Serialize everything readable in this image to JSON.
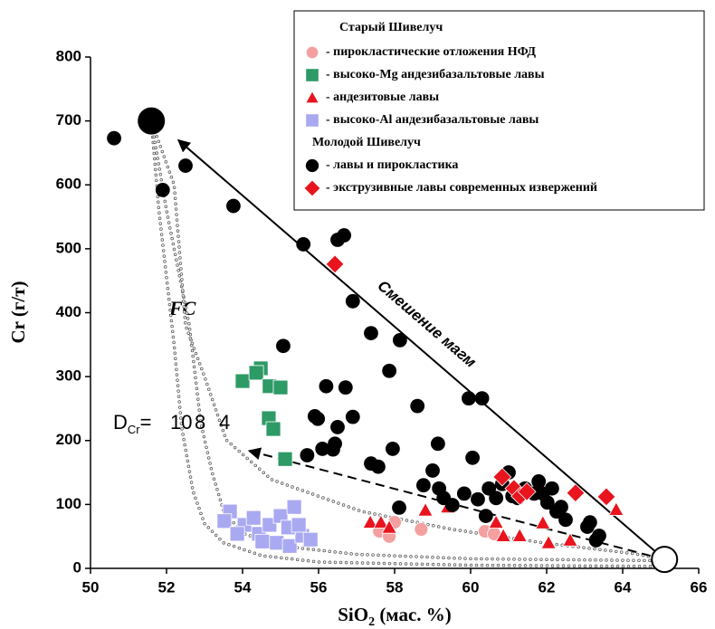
{
  "chart_data": {
    "type": "scatter",
    "x_label": {
      "main": "SiO",
      "sub": "2",
      "rest": " (мас. %)"
    },
    "y_label": "Cr (г/т)",
    "xlim": [
      50,
      66
    ],
    "xticks": [
      50,
      52,
      54,
      56,
      58,
      60,
      62,
      64,
      66
    ],
    "ylim": [
      0,
      800
    ],
    "yticks": [
      0,
      100,
      200,
      300,
      400,
      500,
      600,
      700,
      800
    ],
    "legend_groups": [
      "Старый Шивелуч",
      "Молодой Шивелуч"
    ],
    "series": [
      {
        "name": "- пирокластические отложения НФД",
        "color": "#f4a0a0",
        "marker": "circle",
        "group": 0,
        "x": [
          57.6,
          57.86,
          58,
          58.7,
          60.38,
          60.62
        ],
        "y": [
          58,
          50,
          72,
          61,
          58,
          54
        ]
      },
      {
        "name": "- высоко-Mg андезибазальтовые лавы",
        "color": "#2e9a66",
        "marker": "square",
        "group": 0,
        "x": [
          54,
          54.48,
          54.36,
          54.71,
          55,
          54.69,
          54.81,
          55.12
        ],
        "y": [
          293,
          313,
          306,
          285,
          283,
          235,
          218,
          171
        ]
      },
      {
        "name": "- андезитовые лавы",
        "color": "#e8141e",
        "marker": "triangle",
        "group": 0,
        "x": [
          57.36,
          57.64,
          57.86,
          58.81,
          59.4,
          60.67,
          60.86,
          61.29,
          62.05,
          62.62,
          63.83,
          61.9
        ],
        "y": [
          72,
          72,
          64,
          91,
          96,
          72,
          51,
          51,
          40,
          44,
          92,
          71
        ]
      },
      {
        "name": "- высоко-Al андезибазальтовые лавы",
        "color": "#a9a9f2",
        "marker": "square",
        "group": 0,
        "x": [
          53.67,
          53.52,
          54.05,
          53.86,
          54.43,
          54.71,
          55,
          55.36,
          54.52,
          54.9,
          55.24,
          55.57,
          55.79,
          54.29,
          55.2,
          55.48
        ],
        "y": [
          89,
          74,
          68,
          54,
          54,
          68,
          82,
          96,
          42,
          40,
          35,
          51,
          45,
          79,
          64,
          68
        ]
      },
      {
        "name": "- лавы и пирокластика",
        "color": "#000000",
        "marker": "circle",
        "group": 1,
        "x": [
          50.62,
          51.9,
          52.5,
          53.76,
          55.6,
          56.5,
          56.67,
          56.9,
          55.07,
          57.38,
          58.14,
          57.86,
          56.2,
          56.71,
          55.9,
          55.98,
          56.9,
          56.5,
          56.43,
          56.38,
          56.1,
          55.7,
          57.95,
          57.38,
          57.57,
          58.6,
          59.95,
          60.3,
          60.05,
          59.14,
          58.76,
          59,
          59.17,
          59.29,
          59.52,
          59.83,
          60.19,
          60.48,
          60.67,
          60.83,
          61,
          61.1,
          61.24,
          61.43,
          61.67,
          61.79,
          61.9,
          62.02,
          62.14,
          62.26,
          62.38,
          62.5,
          63.07,
          63.14,
          63.3,
          63.38,
          58.12,
          60.4
        ],
        "y": [
          673,
          592,
          630,
          567,
          507,
          514,
          521,
          418,
          348,
          368,
          357,
          309,
          285,
          283,
          238,
          234,
          237,
          221,
          195,
          186,
          187,
          177,
          187,
          164,
          159,
          254,
          266,
          266,
          173,
          195,
          130,
          153,
          125,
          110,
          99,
          117,
          108,
          125,
          110,
          132,
          150,
          113,
          110,
          125,
          117,
          136,
          117,
          103,
          125,
          89,
          96,
          76,
          65,
          72,
          44,
          51,
          95,
          82
        ]
      },
      {
        "name": "- экструзивные лавы современных извержений",
        "color": "#e8141e",
        "marker": "diamond",
        "group": 1,
        "x": [
          56.43,
          60.83,
          61.14,
          61.3,
          61.48,
          62.76,
          63.57
        ],
        "y": [
          476,
          143,
          125,
          113,
          120,
          118,
          112
        ]
      }
    ],
    "end_members": {
      "x": [
        51.6,
        65.1
      ],
      "y": [
        700,
        14
      ],
      "colors": [
        "#000000",
        "#ffffff"
      ]
    },
    "arrows": [
      {
        "x": [
          65.1,
          52.31
        ],
        "y": [
          14,
          670
        ],
        "style": "solid"
      },
      {
        "x": [
          65.1,
          54.17
        ],
        "y": [
          14,
          184
        ],
        "style": "dashed"
      }
    ],
    "fc_label": "FC",
    "d_label": {
      "main": "D",
      "sub": "Cr",
      "eq": "="
    },
    "fc_curves": [
      {
        "d": 10,
        "x": [
          51.6,
          51.8,
          52.2,
          52.4,
          52.7,
          53,
          53.5,
          54.5,
          56,
          60,
          65
        ],
        "y": [
          700,
          560,
          350,
          220,
          120,
          70,
          40,
          20,
          10,
          5,
          3
        ]
      },
      {
        "d": 8,
        "x": [
          51.6,
          52,
          52.6,
          52.9,
          53.2,
          53.5,
          54,
          55,
          57,
          60,
          65
        ],
        "y": [
          700,
          560,
          380,
          228,
          150,
          90,
          55,
          35,
          22,
          15,
          12
        ]
      },
      {
        "d": 4,
        "x": [
          51.6,
          52.2,
          52.5,
          53,
          53.57,
          54.76,
          57.14,
          59.52,
          61.9,
          64.3,
          65.1
        ],
        "y": [
          700,
          600,
          380,
          300,
          201,
          139,
          89,
          61,
          40,
          23,
          14
        ]
      }
    ],
    "mixing_label": "Смешение магм"
  }
}
